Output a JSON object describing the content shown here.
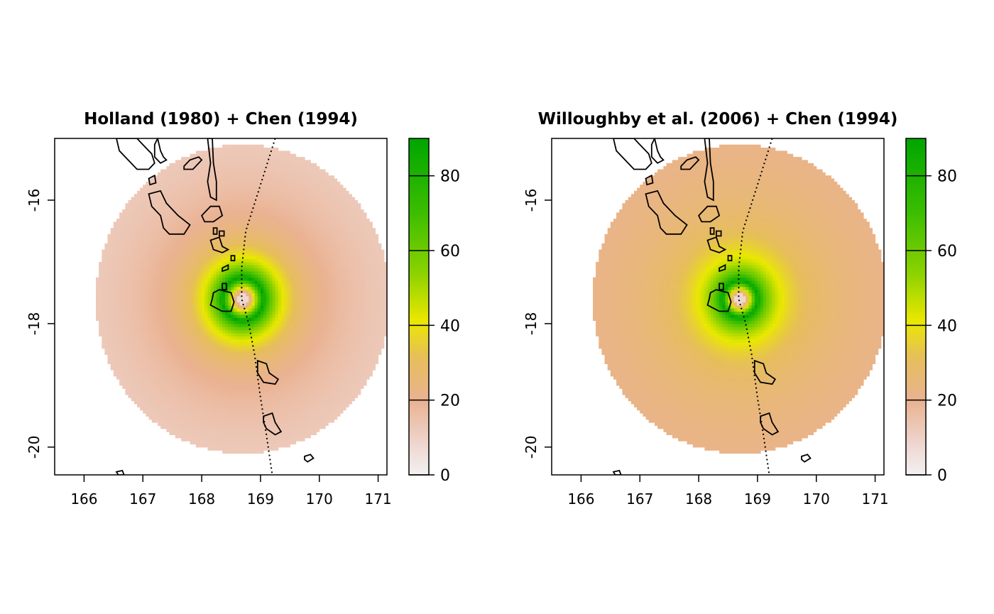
{
  "chart_data": [
    {
      "type": "heatmap",
      "title": "Holland (1980) + Chen (1994)",
      "x_ticks": [
        166,
        167,
        168,
        169,
        170,
        171
      ],
      "y_ticks": [
        -16,
        -18,
        -20
      ],
      "xlim": [
        165.5,
        171.15
      ],
      "ylim": [
        -20.45,
        -15.0
      ],
      "center": {
        "lon": 168.7,
        "lat": -17.6
      },
      "radius_deg": 2.5,
      "max_wind": 90,
      "max_wind_radius_deg": 0.35,
      "outer_wind": 7,
      "colorbar": {
        "min": 0,
        "max": 90,
        "ticks": [
          0,
          20,
          40,
          60,
          80
        ]
      }
    },
    {
      "type": "heatmap",
      "title": "Willoughby et al. (2006) + Chen (1994)",
      "x_ticks": [
        166,
        167,
        168,
        169,
        170,
        171
      ],
      "y_ticks": [
        -16,
        -18,
        -20
      ],
      "xlim": [
        165.5,
        171.15
      ],
      "ylim": [
        -20.45,
        -15.0
      ],
      "center": {
        "lon": 168.7,
        "lat": -17.6
      },
      "radius_deg": 2.5,
      "max_wind": 90,
      "max_wind_radius_deg": 0.3,
      "outer_wind": 18,
      "colorbar": {
        "min": 0,
        "max": 90,
        "ticks": [
          0,
          20,
          40,
          60,
          80
        ]
      }
    }
  ],
  "track": [
    [
      169.25,
      -15.0
    ],
    [
      169.05,
      -15.6
    ],
    [
      168.75,
      -16.5
    ],
    [
      168.68,
      -17.1
    ],
    [
      168.68,
      -17.6
    ],
    [
      168.8,
      -18.0
    ],
    [
      168.9,
      -18.5
    ],
    [
      169.0,
      -19.2
    ],
    [
      169.1,
      -19.8
    ],
    [
      169.2,
      -20.45
    ]
  ],
  "islands": [
    [
      [
        166.55,
        -15.0
      ],
      [
        166.6,
        -15.2
      ],
      [
        166.75,
        -15.35
      ],
      [
        166.9,
        -15.5
      ],
      [
        167.1,
        -15.5
      ],
      [
        167.2,
        -15.4
      ],
      [
        167.15,
        -15.25
      ],
      [
        167.0,
        -15.1
      ],
      [
        166.9,
        -15.0
      ]
    ],
    [
      [
        167.25,
        -15.0
      ],
      [
        167.3,
        -15.2
      ],
      [
        167.35,
        -15.3
      ],
      [
        167.4,
        -15.35
      ],
      [
        167.3,
        -15.4
      ],
      [
        167.2,
        -15.3
      ],
      [
        167.2,
        -15.1
      ]
    ],
    [
      [
        167.7,
        -15.45
      ],
      [
        167.8,
        -15.35
      ],
      [
        167.95,
        -15.3
      ],
      [
        168.0,
        -15.35
      ],
      [
        167.85,
        -15.5
      ],
      [
        167.7,
        -15.5
      ]
    ],
    [
      [
        168.1,
        -15.0
      ],
      [
        168.15,
        -15.4
      ],
      [
        168.1,
        -15.7
      ],
      [
        168.15,
        -15.95
      ],
      [
        168.25,
        -16.0
      ],
      [
        168.25,
        -15.7
      ],
      [
        168.2,
        -15.4
      ],
      [
        168.18,
        -15.0
      ]
    ],
    [
      [
        167.1,
        -15.65
      ],
      [
        167.2,
        -15.6
      ],
      [
        167.22,
        -15.72
      ],
      [
        167.12,
        -15.75
      ]
    ],
    [
      [
        167.1,
        -15.9
      ],
      [
        167.3,
        -15.85
      ],
      [
        167.4,
        -16.05
      ],
      [
        167.6,
        -16.25
      ],
      [
        167.8,
        -16.4
      ],
      [
        167.7,
        -16.55
      ],
      [
        167.45,
        -16.55
      ],
      [
        167.35,
        -16.45
      ],
      [
        167.3,
        -16.25
      ],
      [
        167.15,
        -16.1
      ]
    ],
    [
      [
        168.0,
        -16.25
      ],
      [
        168.15,
        -16.1
      ],
      [
        168.3,
        -16.1
      ],
      [
        168.35,
        -16.25
      ],
      [
        168.2,
        -16.35
      ],
      [
        168.05,
        -16.35
      ]
    ],
    [
      [
        168.2,
        -16.45
      ],
      [
        168.26,
        -16.45
      ],
      [
        168.26,
        -16.55
      ],
      [
        168.2,
        -16.55
      ]
    ],
    [
      [
        168.3,
        -16.5
      ],
      [
        168.38,
        -16.5
      ],
      [
        168.38,
        -16.58
      ],
      [
        168.3,
        -16.58
      ]
    ],
    [
      [
        168.15,
        -16.65
      ],
      [
        168.3,
        -16.6
      ],
      [
        168.35,
        -16.75
      ],
      [
        168.45,
        -16.8
      ],
      [
        168.35,
        -16.85
      ],
      [
        168.2,
        -16.8
      ]
    ],
    [
      [
        168.5,
        -16.9
      ],
      [
        168.56,
        -16.9
      ],
      [
        168.56,
        -16.98
      ],
      [
        168.5,
        -16.98
      ]
    ],
    [
      [
        168.35,
        -17.1
      ],
      [
        168.45,
        -17.05
      ],
      [
        168.45,
        -17.12
      ],
      [
        168.35,
        -17.15
      ]
    ],
    [
      [
        168.35,
        -17.35
      ],
      [
        168.42,
        -17.35
      ],
      [
        168.42,
        -17.45
      ],
      [
        168.35,
        -17.45
      ]
    ],
    [
      [
        168.2,
        -17.5
      ],
      [
        168.3,
        -17.45
      ],
      [
        168.5,
        -17.5
      ],
      [
        168.55,
        -17.65
      ],
      [
        168.5,
        -17.8
      ],
      [
        168.35,
        -17.8
      ],
      [
        168.25,
        -17.75
      ],
      [
        168.15,
        -17.7
      ],
      [
        168.18,
        -17.6
      ]
    ],
    [
      [
        168.95,
        -18.6
      ],
      [
        169.1,
        -18.65
      ],
      [
        169.15,
        -18.8
      ],
      [
        169.3,
        -18.9
      ],
      [
        169.25,
        -18.98
      ],
      [
        169.05,
        -18.95
      ],
      [
        168.95,
        -18.8
      ]
    ],
    [
      [
        169.05,
        -19.5
      ],
      [
        169.2,
        -19.45
      ],
      [
        169.25,
        -19.6
      ],
      [
        169.35,
        -19.75
      ],
      [
        169.25,
        -19.8
      ],
      [
        169.1,
        -19.7
      ],
      [
        169.05,
        -19.6
      ]
    ],
    [
      [
        169.75,
        -20.15
      ],
      [
        169.85,
        -20.12
      ],
      [
        169.9,
        -20.18
      ],
      [
        169.8,
        -20.24
      ],
      [
        169.75,
        -20.2
      ]
    ],
    [
      [
        166.55,
        -20.4
      ],
      [
        166.65,
        -20.38
      ],
      [
        166.68,
        -20.45
      ],
      [
        166.58,
        -20.45
      ]
    ]
  ]
}
